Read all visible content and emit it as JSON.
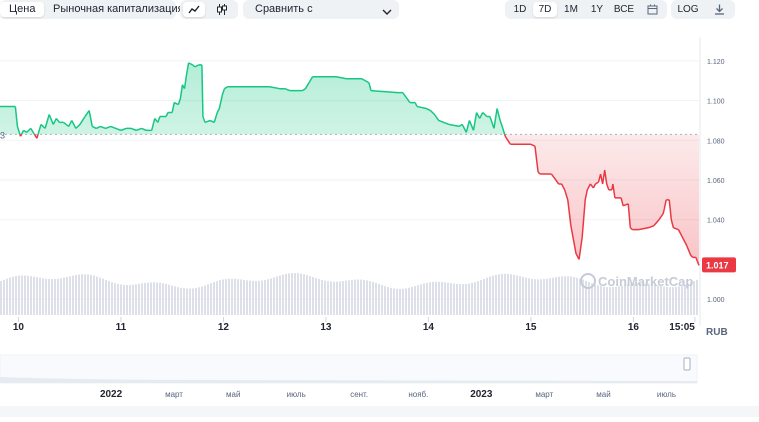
{
  "toolbar": {
    "tabs": [
      "Цена",
      "Рыночная капитализация"
    ],
    "active_tab": 0,
    "chart_icons": [
      "line-chart-icon",
      "candlestick-chart-icon"
    ],
    "compare_label": "Сравнить с",
    "ranges": [
      "1D",
      "7D",
      "1M",
      "1Y",
      "ВСЕ"
    ],
    "active_range": "7D",
    "calendar_icon": "calendar-icon",
    "log_label": "LOG",
    "download_icon": "download-icon"
  },
  "chart_data": {
    "type": "line",
    "currency_label": "RUB",
    "watermark": "CoinMarketCap",
    "baseline_value": 1.083,
    "baseline_partial_label": "3",
    "current_value_label": "1.017",
    "y_ticks": [
      "1.120",
      "1.100",
      "1.080",
      "1.060",
      "1.040",
      "1.000"
    ],
    "y_tick_values": [
      1.12,
      1.1,
      1.08,
      1.06,
      1.04,
      1.0
    ],
    "x_ticks": [
      "10",
      "11",
      "12",
      "13",
      "14",
      "15",
      "16",
      "15:05"
    ],
    "x_tick_values": [
      10,
      11,
      12,
      13,
      14,
      15,
      16,
      16.6
    ],
    "xlim": [
      9.82,
      16.65
    ],
    "ylim": [
      0.992,
      1.127
    ],
    "colors": {
      "up": "#16c784",
      "down": "#ea3943",
      "volume": "#d2d6e2"
    },
    "series": [
      {
        "values": [
          [
            9.82,
            1.097
          ],
          [
            9.97,
            1.097
          ],
          [
            9.99,
            1.087
          ],
          [
            10.02,
            1.082
          ],
          [
            10.05,
            1.085
          ],
          [
            10.08,
            1.084
          ],
          [
            10.12,
            1.086
          ],
          [
            10.18,
            1.081
          ],
          [
            10.22,
            1.088
          ],
          [
            10.26,
            1.086
          ],
          [
            10.3,
            1.093
          ],
          [
            10.34,
            1.088
          ],
          [
            10.37,
            1.091
          ],
          [
            10.4,
            1.089
          ],
          [
            10.44,
            1.089
          ],
          [
            10.49,
            1.087
          ],
          [
            10.52,
            1.09
          ],
          [
            10.56,
            1.086
          ],
          [
            10.6,
            1.088
          ],
          [
            10.65,
            1.092
          ],
          [
            10.69,
            1.095
          ],
          [
            10.72,
            1.087
          ],
          [
            10.76,
            1.086
          ],
          [
            10.8,
            1.087
          ],
          [
            10.85,
            1.086
          ],
          [
            10.9,
            1.087
          ],
          [
            10.95,
            1.086
          ],
          [
            11.0,
            1.085
          ],
          [
            11.05,
            1.086
          ],
          [
            11.1,
            1.086
          ],
          [
            11.15,
            1.085
          ],
          [
            11.2,
            1.086
          ],
          [
            11.25,
            1.085
          ],
          [
            11.3,
            1.085
          ],
          [
            11.33,
            1.091
          ],
          [
            11.36,
            1.089
          ],
          [
            11.38,
            1.092
          ],
          [
            11.44,
            1.092
          ],
          [
            11.46,
            1.094
          ],
          [
            11.5,
            1.094
          ],
          [
            11.52,
            1.099
          ],
          [
            11.56,
            1.098
          ],
          [
            11.58,
            1.101
          ],
          [
            11.6,
            1.108
          ],
          [
            11.62,
            1.106
          ],
          [
            11.64,
            1.113
          ],
          [
            11.66,
            1.119
          ],
          [
            11.7,
            1.118
          ],
          [
            11.72,
            1.117
          ],
          [
            11.76,
            1.118
          ],
          [
            11.79,
            1.118
          ],
          [
            11.8,
            1.092
          ],
          [
            11.82,
            1.089
          ],
          [
            11.87,
            1.09
          ],
          [
            11.91,
            1.089
          ],
          [
            11.94,
            1.094
          ],
          [
            11.96,
            1.096
          ],
          [
            11.99,
            1.103
          ],
          [
            12.01,
            1.106
          ],
          [
            12.04,
            1.107
          ],
          [
            12.2,
            1.107
          ],
          [
            12.3,
            1.107
          ],
          [
            12.45,
            1.107
          ],
          [
            12.55,
            1.106
          ],
          [
            12.6,
            1.106
          ],
          [
            12.65,
            1.105
          ],
          [
            12.77,
            1.105
          ],
          [
            12.8,
            1.106
          ],
          [
            12.87,
            1.112
          ],
          [
            13.1,
            1.112
          ],
          [
            13.2,
            1.111
          ],
          [
            13.35,
            1.111
          ],
          [
            13.42,
            1.109
          ],
          [
            13.44,
            1.105
          ],
          [
            13.7,
            1.104
          ],
          [
            13.75,
            1.104
          ],
          [
            13.82,
            1.099
          ],
          [
            13.87,
            1.099
          ],
          [
            13.89,
            1.097
          ],
          [
            13.98,
            1.096
          ],
          [
            14.02,
            1.095
          ],
          [
            14.06,
            1.093
          ],
          [
            14.1,
            1.09
          ],
          [
            14.2,
            1.088
          ],
          [
            14.3,
            1.087
          ],
          [
            14.33,
            1.088
          ],
          [
            14.37,
            1.084
          ],
          [
            14.4,
            1.09
          ],
          [
            14.44,
            1.085
          ],
          [
            14.47,
            1.094
          ],
          [
            14.5,
            1.091
          ],
          [
            14.53,
            1.094
          ],
          [
            14.57,
            1.092
          ],
          [
            14.6,
            1.092
          ],
          [
            14.64,
            1.086
          ],
          [
            14.67,
            1.096
          ],
          [
            14.7,
            1.09
          ],
          [
            14.72,
            1.087
          ],
          [
            14.75,
            1.082
          ],
          [
            14.8,
            1.078
          ],
          [
            14.9,
            1.078
          ],
          [
            15.0,
            1.078
          ],
          [
            15.04,
            1.077
          ],
          [
            15.07,
            1.064
          ],
          [
            15.09,
            1.063
          ],
          [
            15.14,
            1.063
          ],
          [
            15.2,
            1.063
          ],
          [
            15.23,
            1.061
          ],
          [
            15.27,
            1.058
          ],
          [
            15.3,
            1.058
          ],
          [
            15.33,
            1.055
          ],
          [
            15.36,
            1.05
          ],
          [
            15.39,
            1.037
          ],
          [
            15.44,
            1.023
          ],
          [
            15.47,
            1.02
          ],
          [
            15.5,
            1.031
          ],
          [
            15.53,
            1.05
          ],
          [
            15.55,
            1.055
          ],
          [
            15.58,
            1.058
          ],
          [
            15.61,
            1.056
          ],
          [
            15.63,
            1.058
          ],
          [
            15.66,
            1.059
          ],
          [
            15.68,
            1.063
          ],
          [
            15.7,
            1.058
          ],
          [
            15.72,
            1.065
          ],
          [
            15.74,
            1.058
          ],
          [
            15.76,
            1.055
          ],
          [
            15.79,
            1.055
          ],
          [
            15.8,
            1.058
          ],
          [
            15.82,
            1.051
          ],
          [
            15.88,
            1.051
          ],
          [
            15.9,
            1.047
          ],
          [
            15.95,
            1.048
          ],
          [
            15.97,
            1.036
          ],
          [
            15.99,
            1.035
          ],
          [
            16.05,
            1.035
          ],
          [
            16.15,
            1.036
          ],
          [
            16.2,
            1.037
          ],
          [
            16.25,
            1.04
          ],
          [
            16.29,
            1.043
          ],
          [
            16.3,
            1.045
          ],
          [
            16.32,
            1.05
          ],
          [
            16.35,
            1.05
          ],
          [
            16.37,
            1.04
          ],
          [
            16.39,
            1.036
          ],
          [
            16.44,
            1.035
          ],
          [
            16.47,
            1.032
          ],
          [
            16.52,
            1.027
          ],
          [
            16.56,
            1.022
          ],
          [
            16.58,
            1.021
          ],
          [
            16.61,
            1.021
          ],
          [
            16.64,
            1.017
          ]
        ]
      }
    ]
  },
  "navigator": {
    "labels": [
      "2022",
      "март",
      "май",
      "июль",
      "сент.",
      "нояб.",
      "2023",
      "март",
      "май",
      "июль"
    ],
    "label_values": [
      2022.0,
      2022.17,
      2022.33,
      2022.5,
      2022.67,
      2022.83,
      2023.0,
      2023.17,
      2023.33,
      2023.5
    ],
    "range": [
      2021.7,
      2023.75
    ]
  }
}
